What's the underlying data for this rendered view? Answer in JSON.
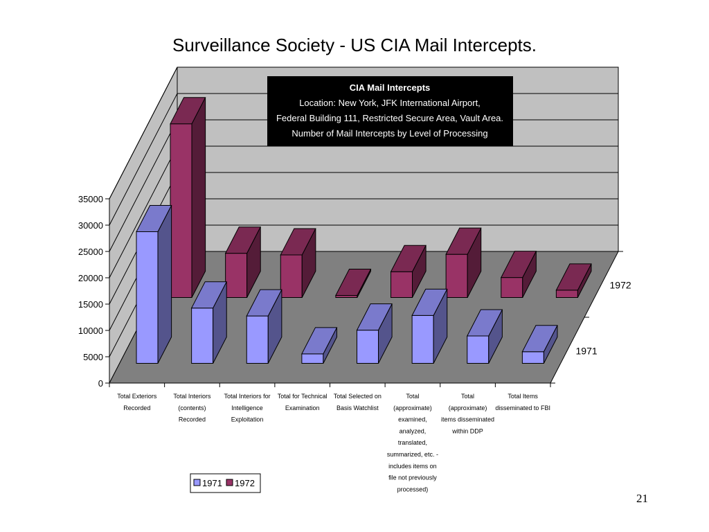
{
  "slide": {
    "title": "Surveillance Society - US CIA Mail Intercepts.",
    "page_number": "21"
  },
  "info_box": {
    "title": "CIA Mail Intercepts",
    "lines": [
      "Location: New York, JFK International Airport,",
      "Federal Building 111, Restricted Secure Area, Vault Area.",
      "Number of Mail Intercepts by Level of Processing"
    ]
  },
  "colors": {
    "series_1971": "#9999FF",
    "series_1972": "#993366",
    "walls": "#C0C0C0",
    "floor": "#808080",
    "info_box_bg": "#000000"
  },
  "chart_data": {
    "type": "bar",
    "subtype": "3d-clustered",
    "title": "",
    "ylim": [
      0,
      35000
    ],
    "yticks": [
      "0",
      "5000",
      "10000",
      "15000",
      "20000",
      "25000",
      "30000",
      "35000"
    ],
    "categories": [
      [
        "Total Exteriors",
        "Recorded"
      ],
      [
        "Total Interiors",
        "(contents)",
        "Recorded"
      ],
      [
        "Total Interiors for",
        "Intelligence",
        "Exploitation"
      ],
      [
        "Total for Technical",
        "Examination"
      ],
      [
        "Total Selected on",
        "Basis Watchlist"
      ],
      [
        "Total",
        "(approximate)",
        "examined,",
        "analyzed,",
        "translated,",
        "summarized, etc. -",
        "includes items on",
        "file not previously",
        "processed)"
      ],
      [
        "Total",
        "(approximate)",
        "items disseminated",
        "within DDP"
      ],
      [
        "Total Items",
        "disseminated to FBI"
      ]
    ],
    "series": [
      {
        "name": "1971",
        "values": [
          25000,
          10500,
          9000,
          1800,
          6300,
          9100,
          5200,
          2200
        ]
      },
      {
        "name": "1972",
        "values": [
          33000,
          8400,
          8100,
          400,
          4900,
          8200,
          3800,
          1400
        ]
      }
    ],
    "series_axis_labels": [
      "1971",
      "1972"
    ],
    "legend": {
      "position": "bottom-left",
      "entries": [
        "1971",
        "1972"
      ]
    },
    "grid": true
  }
}
